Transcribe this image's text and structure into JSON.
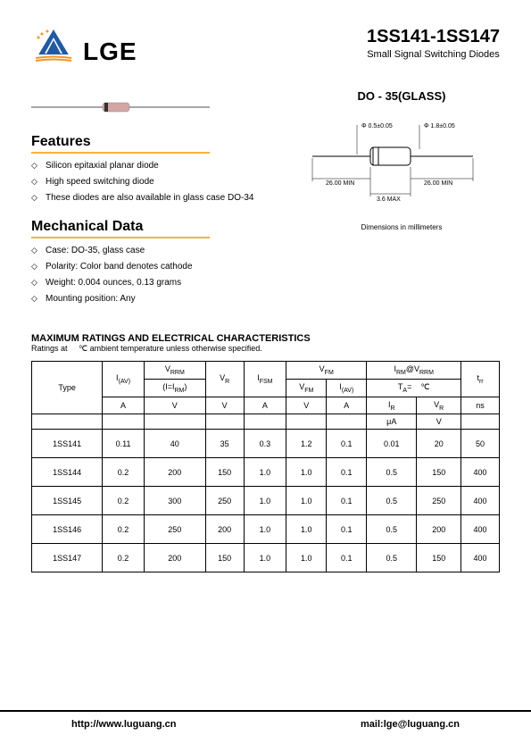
{
  "header": {
    "logo_text": "LGE",
    "title": "1SS141-1SS147",
    "subtitle": "Small Signal Switching Diodes",
    "package": "DO - 35(GLASS)"
  },
  "features": {
    "title": "Features",
    "items": [
      "Silicon epitaxial planar diode",
      "High speed switching diode",
      "These diodes are also available in glass case DO-34"
    ]
  },
  "mechanical": {
    "title": "Mechanical Data",
    "items": [
      "Case: DO-35, glass case",
      "Polarity: Color band denotes cathode",
      "Weight: 0.004 ounces, 0.13 grams",
      "Mounting position: Any"
    ]
  },
  "diagram": {
    "dim1": "Φ 0.5±0.05",
    "dim2": "Φ 1.8±0.05",
    "lead": "26.00 MIN",
    "body": "3.6 MAX",
    "caption": "Dimensions in millimeters"
  },
  "ratings": {
    "title": "MAXIMUM RATINGS AND ELECTRICAL CHARACTERISTICS",
    "subtitle": "Ratings at     ℃ ambient temperature unless otherwise specified.",
    "headers": {
      "type": "Type",
      "iav": "I",
      "iav_sub": "(AV)",
      "vrrm": "V",
      "vrrm_sub": "RRM",
      "vrrm_note": "(I=I",
      "vrrm_note_sub": "RM",
      "vrrm_note_end": ")",
      "vr": "V",
      "vr_sub": "R",
      "ifsm": "I",
      "ifsm_sub": "FSM",
      "vfm": "V",
      "vfm_sub": "FM",
      "irm": "I",
      "irm_sub": "RM",
      "at": "@V",
      "at_sub": "RRM",
      "ta": "T",
      "ta_sub": "A",
      "ta_eq": "=    ℃",
      "ir": "I",
      "ir_sub": "R",
      "trr": "t",
      "trr_sub": "rr",
      "units": {
        "a": "A",
        "v": "V",
        "ua": "μA",
        "ns": "ns"
      }
    },
    "rows": [
      {
        "type": "1SS141",
        "iav": "0.11",
        "vrrm": "40",
        "vr": "35",
        "ifsm": "0.3",
        "vfm": "1.2",
        "iav2": "0.1",
        "ir": "0.01",
        "vr2": "20",
        "trr": "50"
      },
      {
        "type": "1SS144",
        "iav": "0.2",
        "vrrm": "200",
        "vr": "150",
        "ifsm": "1.0",
        "vfm": "1.0",
        "iav2": "0.1",
        "ir": "0.5",
        "vr2": "150",
        "trr": "400"
      },
      {
        "type": "1SS145",
        "iav": "0.2",
        "vrrm": "300",
        "vr": "250",
        "ifsm": "1.0",
        "vfm": "1.0",
        "iav2": "0.1",
        "ir": "0.5",
        "vr2": "250",
        "trr": "400"
      },
      {
        "type": "1SS146",
        "iav": "0.2",
        "vrrm": "250",
        "vr": "200",
        "ifsm": "1.0",
        "vfm": "1.0",
        "iav2": "0.1",
        "ir": "0.5",
        "vr2": "200",
        "trr": "400"
      },
      {
        "type": "1SS147",
        "iav": "0.2",
        "vrrm": "200",
        "vr": "150",
        "ifsm": "1.0",
        "vfm": "1.0",
        "iav2": "0.1",
        "ir": "0.5",
        "vr2": "150",
        "trr": "400"
      }
    ]
  },
  "footer": {
    "url": "http://www.luguang.cn",
    "email": "mail:lge@luguang.cn"
  },
  "colors": {
    "accent": "#fbb040",
    "logo_blue": "#1e5aa8",
    "logo_orange": "#f7941e"
  }
}
